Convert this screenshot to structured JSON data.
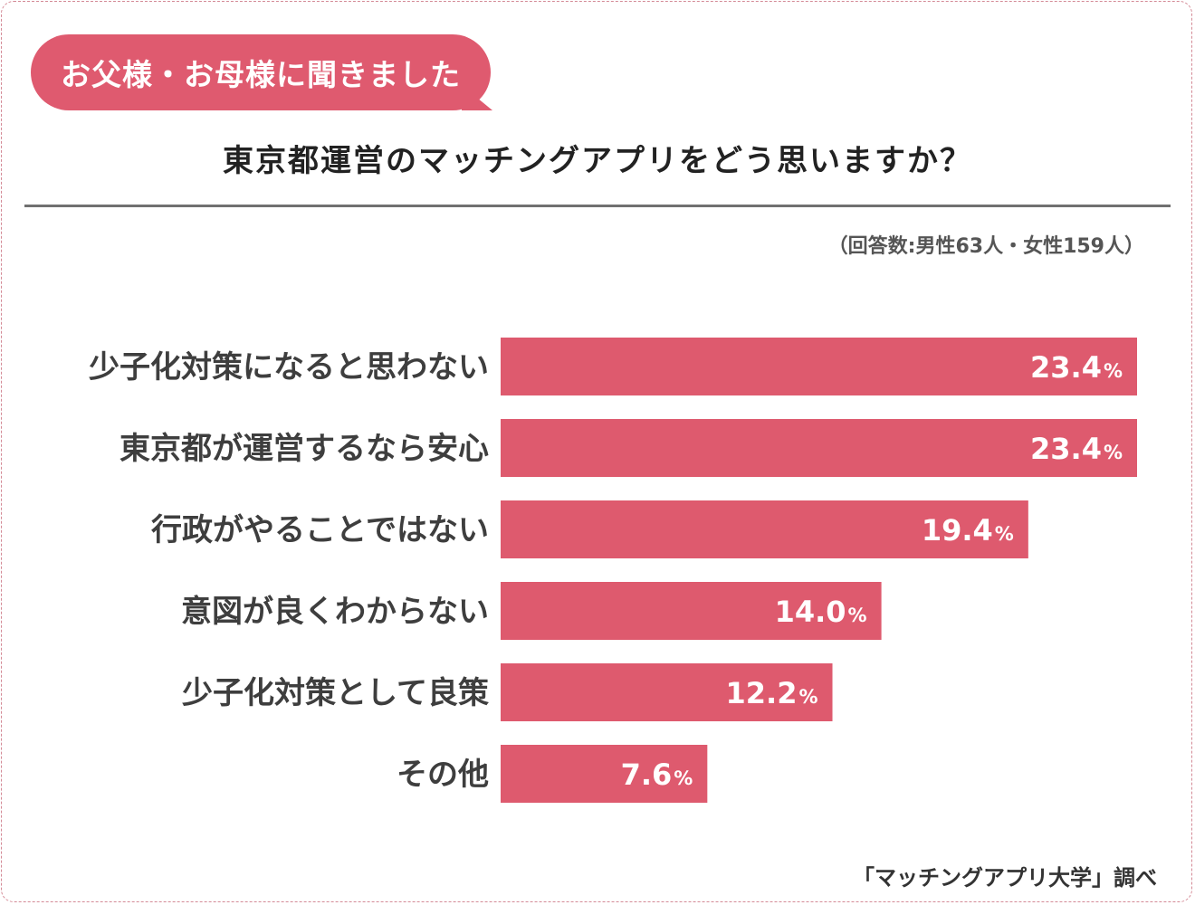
{
  "header": {
    "badge": "お父様・お母様に聞きました",
    "title": "東京都運営のマッチングアプリをどう思いますか？",
    "respondents": "（回答数:男性63人・女性159人）",
    "source": "「マッチングアプリ大学」調べ"
  },
  "colors": {
    "accent": "#df5a6f",
    "bar": "#de5a6e",
    "label": "#3e3e3e"
  },
  "chart_data": {
    "type": "bar",
    "orientation": "horizontal",
    "title": "東京都運営のマッチングアプリをどう思いますか？",
    "categories": [
      "少子化対策になると思わない",
      "東京都が運営するなら安心",
      "行政がやることではない",
      "意図が良くわからない",
      "少子化対策として良策",
      "その他"
    ],
    "values": [
      23.4,
      23.4,
      19.4,
      14.0,
      12.2,
      7.6
    ],
    "value_labels": [
      "23.4",
      "23.4",
      "19.4",
      "14.0",
      "12.2",
      "7.6"
    ],
    "unit": "%",
    "xlim": [
      0,
      23.4
    ],
    "xlabel": "",
    "ylabel": "",
    "grid": false,
    "legend": "none"
  }
}
